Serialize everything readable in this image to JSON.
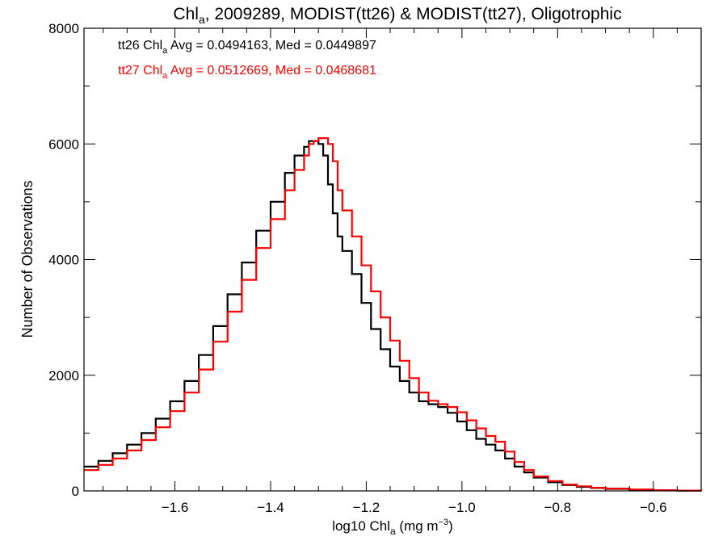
{
  "chart_data": {
    "type": "line",
    "title": {
      "main": "Chl",
      "sub": "a",
      "rest": ", 2009289, MODIST(tt26) & MODIST(tt27), Oligotrophic"
    },
    "xlabel": {
      "main": "log10 Chl",
      "sub": "a",
      "rest": " (mg m",
      "sup": "−3",
      "end": ")"
    },
    "ylabel": "Number of Observations",
    "xlim": [
      -1.79,
      -0.5
    ],
    "ylim": [
      0,
      8000
    ],
    "x_ticks": [
      -1.6,
      -1.4,
      -1.2,
      -1.0,
      -0.8,
      -0.6
    ],
    "x_tick_labels": [
      "−1.6",
      "−1.4",
      "−1.2",
      "−1.0",
      "−0.8",
      "−0.6"
    ],
    "y_ticks": [
      0,
      2000,
      4000,
      6000,
      8000
    ],
    "y_tick_labels": [
      "0",
      "2000",
      "4000",
      "6000",
      "8000"
    ],
    "grid": false,
    "step": true,
    "annotations": [
      {
        "pre": "tt26 Chl",
        "sub": "a",
        "post": " Avg = 0.0494163, Med = 0.0449897",
        "color": "#000000"
      },
      {
        "pre": "tt27 Chl",
        "sub": "a",
        "post": " Avg = 0.0512669, Med = 0.0468681",
        "color": "#ff0000"
      }
    ],
    "series": [
      {
        "color": "#000000",
        "x": [
          -1.79,
          -1.76,
          -1.73,
          -1.7,
          -1.67,
          -1.64,
          -1.61,
          -1.58,
          -1.55,
          -1.52,
          -1.49,
          -1.46,
          -1.43,
          -1.4,
          -1.37,
          -1.35,
          -1.33,
          -1.32,
          -1.31,
          -1.3,
          -1.29,
          -1.28,
          -1.27,
          -1.26,
          -1.25,
          -1.23,
          -1.21,
          -1.19,
          -1.17,
          -1.15,
          -1.13,
          -1.11,
          -1.09,
          -1.07,
          -1.05,
          -1.03,
          -1.01,
          -0.99,
          -0.97,
          -0.95,
          -0.93,
          -0.91,
          -0.89,
          -0.87,
          -0.85,
          -0.82,
          -0.79,
          -0.76,
          -0.73,
          -0.7,
          -0.65,
          -0.6,
          -0.55,
          -0.5
        ],
        "y": [
          420,
          520,
          650,
          800,
          1000,
          1250,
          1550,
          1900,
          2350,
          2850,
          3400,
          3950,
          4500,
          5000,
          5500,
          5800,
          5950,
          6050,
          6050,
          6000,
          5800,
          5300,
          4800,
          4400,
          4150,
          3750,
          3250,
          2800,
          2450,
          2150,
          1900,
          1700,
          1550,
          1500,
          1450,
          1350,
          1200,
          1050,
          900,
          800,
          700,
          560,
          420,
          320,
          230,
          150,
          100,
          70,
          50,
          35,
          20,
          10,
          5,
          0
        ]
      },
      {
        "color": "#ff0000",
        "x": [
          -1.79,
          -1.76,
          -1.73,
          -1.7,
          -1.67,
          -1.64,
          -1.61,
          -1.58,
          -1.55,
          -1.52,
          -1.49,
          -1.46,
          -1.43,
          -1.4,
          -1.37,
          -1.35,
          -1.33,
          -1.32,
          -1.31,
          -1.3,
          -1.29,
          -1.28,
          -1.27,
          -1.26,
          -1.25,
          -1.23,
          -1.21,
          -1.19,
          -1.17,
          -1.15,
          -1.13,
          -1.11,
          -1.09,
          -1.07,
          -1.05,
          -1.03,
          -1.01,
          -0.99,
          -0.97,
          -0.95,
          -0.93,
          -0.91,
          -0.89,
          -0.87,
          -0.85,
          -0.82,
          -0.79,
          -0.76,
          -0.73,
          -0.7,
          -0.65,
          -0.6,
          -0.55,
          -0.5
        ],
        "y": [
          360,
          450,
          560,
          700,
          880,
          1100,
          1380,
          1700,
          2100,
          2580,
          3100,
          3650,
          4200,
          4700,
          5200,
          5550,
          5800,
          6000,
          6050,
          6100,
          6100,
          6000,
          5700,
          5200,
          4850,
          4400,
          3900,
          3450,
          3000,
          2600,
          2250,
          1950,
          1700,
          1560,
          1500,
          1450,
          1360,
          1220,
          1080,
          950,
          850,
          680,
          500,
          360,
          250,
          170,
          110,
          80,
          55,
          40,
          25,
          12,
          6,
          0
        ]
      }
    ]
  }
}
